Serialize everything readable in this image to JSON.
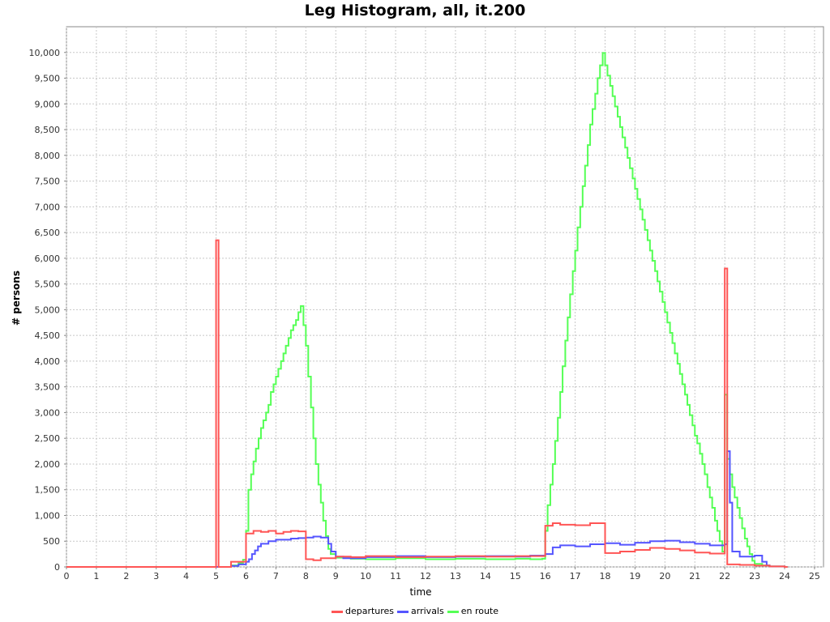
{
  "chart_data": {
    "type": "line",
    "title": "Leg Histogram, all, it.200",
    "xlabel": "time",
    "ylabel": "# persons",
    "xlim": [
      0,
      25.3
    ],
    "ylim": [
      0,
      10500
    ],
    "x_ticks": [
      0,
      1,
      2,
      3,
      4,
      5,
      6,
      7,
      8,
      9,
      10,
      11,
      12,
      13,
      14,
      15,
      16,
      17,
      18,
      19,
      20,
      21,
      22,
      23,
      24,
      25
    ],
    "y_ticks": [
      0,
      500,
      1000,
      1500,
      2000,
      2500,
      3000,
      3500,
      4000,
      4500,
      5000,
      5500,
      6000,
      6500,
      7000,
      7500,
      8000,
      8500,
      9000,
      9500,
      10000
    ],
    "y_tick_labels": [
      "0",
      "500",
      "1,000",
      "1,500",
      "2,000",
      "2,500",
      "3,000",
      "3,500",
      "4,000",
      "4,500",
      "5,000",
      "5,500",
      "6,000",
      "6,500",
      "7,000",
      "7,500",
      "8,000",
      "8,500",
      "9,000",
      "9,500",
      "10,000"
    ],
    "bin_width_hours": 0.0833333,
    "grid": true,
    "legend_position": "bottom",
    "series": [
      {
        "name": "departures",
        "color": "#ff5555",
        "steps": [
          [
            0,
            0
          ],
          [
            5.0,
            6350
          ],
          [
            5.0833,
            0
          ],
          [
            5.5,
            100
          ],
          [
            6.0,
            650
          ],
          [
            6.25,
            700
          ],
          [
            6.5,
            680
          ],
          [
            6.75,
            700
          ],
          [
            7.0,
            650
          ],
          [
            7.25,
            680
          ],
          [
            7.5,
            700
          ],
          [
            7.75,
            690
          ],
          [
            8.0,
            150
          ],
          [
            8.25,
            130
          ],
          [
            8.5,
            170
          ],
          [
            9.0,
            200
          ],
          [
            9.5,
            190
          ],
          [
            10.0,
            210
          ],
          [
            11.0,
            190
          ],
          [
            12.0,
            200
          ],
          [
            13.0,
            210
          ],
          [
            14.0,
            200
          ],
          [
            15.0,
            210
          ],
          [
            16.0,
            800
          ],
          [
            16.25,
            850
          ],
          [
            16.5,
            820
          ],
          [
            17.0,
            810
          ],
          [
            17.5,
            850
          ],
          [
            18.0,
            270
          ],
          [
            18.5,
            300
          ],
          [
            19.0,
            330
          ],
          [
            19.5,
            370
          ],
          [
            20.0,
            350
          ],
          [
            20.5,
            320
          ],
          [
            21.0,
            280
          ],
          [
            21.5,
            260
          ],
          [
            22.0,
            5800
          ],
          [
            22.0833,
            50
          ],
          [
            22.5,
            40
          ],
          [
            23.0,
            25
          ],
          [
            23.5,
            10
          ],
          [
            24.0,
            0
          ],
          [
            24.1,
            0
          ]
        ]
      },
      {
        "name": "arrivals",
        "color": "#5555ff",
        "steps": [
          [
            0,
            0
          ],
          [
            5.5,
            20
          ],
          [
            5.75,
            50
          ],
          [
            6.0,
            100
          ],
          [
            6.1,
            150
          ],
          [
            6.2,
            250
          ],
          [
            6.3,
            320
          ],
          [
            6.4,
            400
          ],
          [
            6.5,
            450
          ],
          [
            6.75,
            500
          ],
          [
            7.0,
            530
          ],
          [
            7.5,
            550
          ],
          [
            7.75,
            560
          ],
          [
            8.0,
            570
          ],
          [
            8.25,
            590
          ],
          [
            8.5,
            570
          ],
          [
            8.75,
            450
          ],
          [
            8.85,
            300
          ],
          [
            9.0,
            200
          ],
          [
            9.25,
            170
          ],
          [
            10.0,
            190
          ],
          [
            11.0,
            210
          ],
          [
            12.0,
            190
          ],
          [
            13.0,
            200
          ],
          [
            14.0,
            210
          ],
          [
            15.0,
            200
          ],
          [
            15.5,
            220
          ],
          [
            16.0,
            250
          ],
          [
            16.25,
            380
          ],
          [
            16.5,
            420
          ],
          [
            17.0,
            400
          ],
          [
            17.5,
            440
          ],
          [
            18.0,
            460
          ],
          [
            18.5,
            430
          ],
          [
            19.0,
            470
          ],
          [
            19.5,
            500
          ],
          [
            20.0,
            510
          ],
          [
            20.5,
            480
          ],
          [
            21.0,
            450
          ],
          [
            21.5,
            420
          ],
          [
            22.0,
            440
          ],
          [
            22.08,
            2250
          ],
          [
            22.17,
            1250
          ],
          [
            22.25,
            300
          ],
          [
            22.5,
            200
          ],
          [
            23.0,
            220
          ],
          [
            23.25,
            100
          ],
          [
            23.4,
            30
          ],
          [
            23.5,
            10
          ],
          [
            24.0,
            0
          ],
          [
            24.1,
            0
          ]
        ]
      },
      {
        "name": "en route",
        "color": "#55ff55",
        "steps": [
          [
            0,
            0
          ],
          [
            5.5,
            30
          ],
          [
            5.75,
            70
          ],
          [
            5.9,
            140
          ],
          [
            6.0,
            700
          ],
          [
            6.08,
            1500
          ],
          [
            6.17,
            1800
          ],
          [
            6.25,
            2050
          ],
          [
            6.33,
            2300
          ],
          [
            6.42,
            2500
          ],
          [
            6.5,
            2700
          ],
          [
            6.58,
            2850
          ],
          [
            6.67,
            3000
          ],
          [
            6.75,
            3150
          ],
          [
            6.83,
            3400
          ],
          [
            6.92,
            3550
          ],
          [
            7.0,
            3700
          ],
          [
            7.08,
            3850
          ],
          [
            7.17,
            4000
          ],
          [
            7.25,
            4150
          ],
          [
            7.33,
            4300
          ],
          [
            7.42,
            4450
          ],
          [
            7.5,
            4600
          ],
          [
            7.58,
            4700
          ],
          [
            7.67,
            4800
          ],
          [
            7.75,
            4950
          ],
          [
            7.83,
            5070
          ],
          [
            7.92,
            4700
          ],
          [
            8.0,
            4300
          ],
          [
            8.08,
            3700
          ],
          [
            8.17,
            3100
          ],
          [
            8.25,
            2500
          ],
          [
            8.33,
            2000
          ],
          [
            8.42,
            1600
          ],
          [
            8.5,
            1250
          ],
          [
            8.58,
            900
          ],
          [
            8.67,
            600
          ],
          [
            8.75,
            350
          ],
          [
            8.83,
            250
          ],
          [
            9.0,
            180
          ],
          [
            9.5,
            160
          ],
          [
            10.0,
            150
          ],
          [
            11.0,
            170
          ],
          [
            12.0,
            150
          ],
          [
            13.0,
            160
          ],
          [
            14.0,
            150
          ],
          [
            15.0,
            160
          ],
          [
            15.5,
            150
          ],
          [
            15.9,
            160
          ],
          [
            16.0,
            700
          ],
          [
            16.08,
            1200
          ],
          [
            16.17,
            1600
          ],
          [
            16.25,
            2000
          ],
          [
            16.33,
            2450
          ],
          [
            16.42,
            2900
          ],
          [
            16.5,
            3400
          ],
          [
            16.58,
            3900
          ],
          [
            16.67,
            4400
          ],
          [
            16.75,
            4850
          ],
          [
            16.83,
            5300
          ],
          [
            16.92,
            5750
          ],
          [
            17.0,
            6150
          ],
          [
            17.08,
            6600
          ],
          [
            17.17,
            7000
          ],
          [
            17.25,
            7400
          ],
          [
            17.33,
            7800
          ],
          [
            17.42,
            8200
          ],
          [
            17.5,
            8600
          ],
          [
            17.58,
            8900
          ],
          [
            17.67,
            9200
          ],
          [
            17.75,
            9500
          ],
          [
            17.83,
            9750
          ],
          [
            17.92,
            9990
          ],
          [
            18.0,
            9750
          ],
          [
            18.08,
            9550
          ],
          [
            18.17,
            9350
          ],
          [
            18.25,
            9150
          ],
          [
            18.33,
            8950
          ],
          [
            18.42,
            8750
          ],
          [
            18.5,
            8550
          ],
          [
            18.58,
            8350
          ],
          [
            18.67,
            8150
          ],
          [
            18.75,
            7950
          ],
          [
            18.83,
            7750
          ],
          [
            18.92,
            7550
          ],
          [
            19.0,
            7350
          ],
          [
            19.08,
            7150
          ],
          [
            19.17,
            6950
          ],
          [
            19.25,
            6750
          ],
          [
            19.33,
            6550
          ],
          [
            19.42,
            6350
          ],
          [
            19.5,
            6150
          ],
          [
            19.58,
            5950
          ],
          [
            19.67,
            5750
          ],
          [
            19.75,
            5550
          ],
          [
            19.83,
            5350
          ],
          [
            19.92,
            5150
          ],
          [
            20.0,
            4950
          ],
          [
            20.08,
            4750
          ],
          [
            20.17,
            4550
          ],
          [
            20.25,
            4350
          ],
          [
            20.33,
            4150
          ],
          [
            20.42,
            3950
          ],
          [
            20.5,
            3750
          ],
          [
            20.58,
            3550
          ],
          [
            20.67,
            3350
          ],
          [
            20.75,
            3150
          ],
          [
            20.83,
            2950
          ],
          [
            20.92,
            2750
          ],
          [
            21.0,
            2550
          ],
          [
            21.08,
            2400
          ],
          [
            21.17,
            2200
          ],
          [
            21.25,
            2000
          ],
          [
            21.33,
            1800
          ],
          [
            21.42,
            1550
          ],
          [
            21.5,
            1350
          ],
          [
            21.58,
            1150
          ],
          [
            21.67,
            900
          ],
          [
            21.75,
            700
          ],
          [
            21.83,
            500
          ],
          [
            21.92,
            300
          ],
          [
            22.0,
            3350
          ],
          [
            22.08,
            2100
          ],
          [
            22.17,
            1800
          ],
          [
            22.25,
            1550
          ],
          [
            22.33,
            1350
          ],
          [
            22.42,
            1150
          ],
          [
            22.5,
            950
          ],
          [
            22.58,
            750
          ],
          [
            22.67,
            550
          ],
          [
            22.75,
            400
          ],
          [
            22.83,
            250
          ],
          [
            22.92,
            120
          ],
          [
            23.0,
            60
          ],
          [
            23.25,
            30
          ],
          [
            23.5,
            10
          ],
          [
            24.0,
            0
          ],
          [
            24.1,
            0
          ]
        ]
      }
    ]
  }
}
